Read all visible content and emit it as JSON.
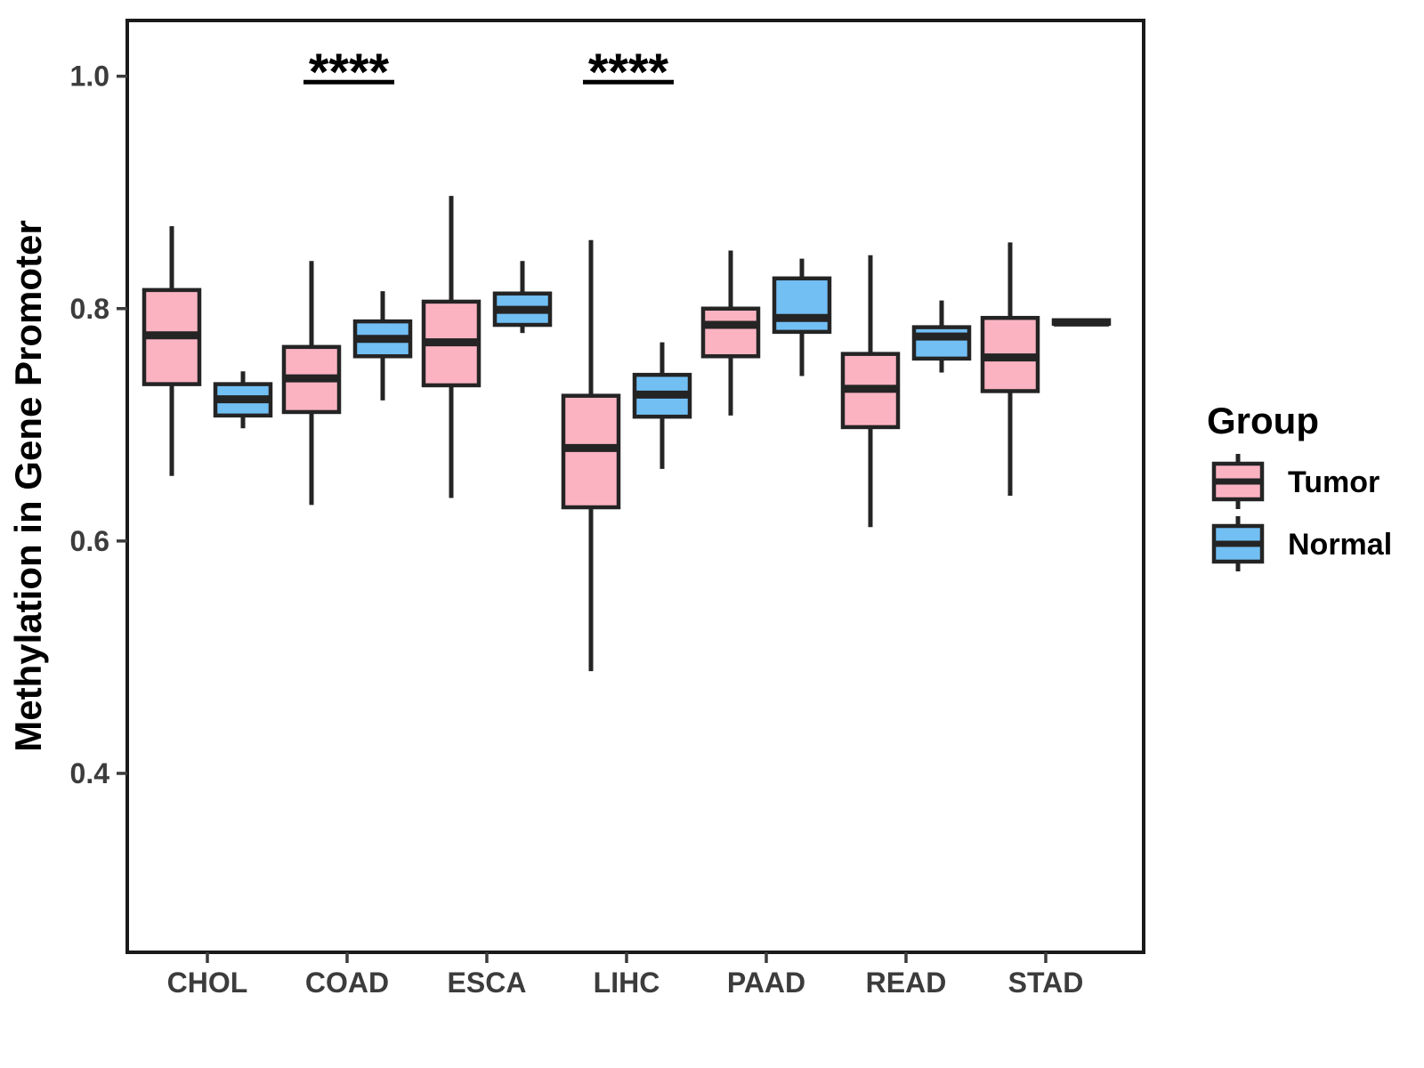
{
  "figure": {
    "background": "#ffffff"
  },
  "chart_data": {
    "type": "boxplot",
    "title": "",
    "xlabel": "",
    "ylabel": "Methylation in Gene Promoter",
    "categories": [
      "CHOL",
      "COAD",
      "ESCA",
      "LIHC",
      "PAAD",
      "READ",
      "STAD"
    ],
    "y_ticks": [
      1.0,
      0.8,
      0.6,
      0.4
    ],
    "ylim": [
      0.246,
      1.048
    ],
    "grid": false,
    "legend_position": "right",
    "series": [
      {
        "name": "Tumor",
        "fill": "#FBB3C2",
        "boxes": [
          {
            "category": "CHOL",
            "whisker_low": 0.656,
            "q1": 0.735,
            "median": 0.777,
            "q3": 0.816,
            "whisker_high": 0.871
          },
          {
            "category": "COAD",
            "whisker_low": 0.631,
            "q1": 0.711,
            "median": 0.74,
            "q3": 0.767,
            "whisker_high": 0.841
          },
          {
            "category": "ESCA",
            "whisker_low": 0.637,
            "q1": 0.734,
            "median": 0.771,
            "q3": 0.806,
            "whisker_high": 0.897
          },
          {
            "category": "LIHC",
            "whisker_low": 0.488,
            "q1": 0.629,
            "median": 0.68,
            "q3": 0.725,
            "whisker_high": 0.859
          },
          {
            "category": "PAAD",
            "whisker_low": 0.708,
            "q1": 0.759,
            "median": 0.786,
            "q3": 0.8,
            "whisker_high": 0.85
          },
          {
            "category": "READ",
            "whisker_low": 0.612,
            "q1": 0.698,
            "median": 0.731,
            "q3": 0.761,
            "whisker_high": 0.846
          },
          {
            "category": "STAD",
            "whisker_low": 0.639,
            "q1": 0.729,
            "median": 0.758,
            "q3": 0.792,
            "whisker_high": 0.857
          }
        ]
      },
      {
        "name": "Normal",
        "fill": "#72BFF4",
        "boxes": [
          {
            "category": "CHOL",
            "whisker_low": 0.697,
            "q1": 0.708,
            "median": 0.722,
            "q3": 0.735,
            "whisker_high": 0.746
          },
          {
            "category": "COAD",
            "whisker_low": 0.721,
            "q1": 0.759,
            "median": 0.774,
            "q3": 0.789,
            "whisker_high": 0.815
          },
          {
            "category": "ESCA",
            "whisker_low": 0.779,
            "q1": 0.786,
            "median": 0.799,
            "q3": 0.813,
            "whisker_high": 0.841
          },
          {
            "category": "LIHC",
            "whisker_low": 0.662,
            "q1": 0.707,
            "median": 0.726,
            "q3": 0.743,
            "whisker_high": 0.771
          },
          {
            "category": "PAAD",
            "whisker_low": 0.742,
            "q1": 0.78,
            "median": 0.792,
            "q3": 0.826,
            "whisker_high": 0.843
          },
          {
            "category": "READ",
            "whisker_low": 0.745,
            "q1": 0.757,
            "median": 0.776,
            "q3": 0.784,
            "whisker_high": 0.807
          },
          {
            "category": "STAD",
            "whisker_low": 0.785,
            "q1": 0.787,
            "median": 0.788,
            "q3": 0.79,
            "whisker_high": 0.791
          }
        ]
      }
    ],
    "annotations": [
      {
        "category": "COAD",
        "label": "****",
        "bar_y": 0.995
      },
      {
        "category": "LIHC",
        "label": "****",
        "bar_y": 0.995
      }
    ],
    "legend": {
      "title": "Group",
      "entries": [
        {
          "label": "Tumor",
          "fill": "#FBB3C2"
        },
        {
          "label": "Normal",
          "fill": "#72BFF4"
        }
      ]
    },
    "colors": {
      "box_line": "#242424",
      "panel_border": "#1a1a1a",
      "tick_text": "#3c3c3c",
      "axis_title_text": "#000000",
      "annotation_text": "#000000"
    }
  }
}
